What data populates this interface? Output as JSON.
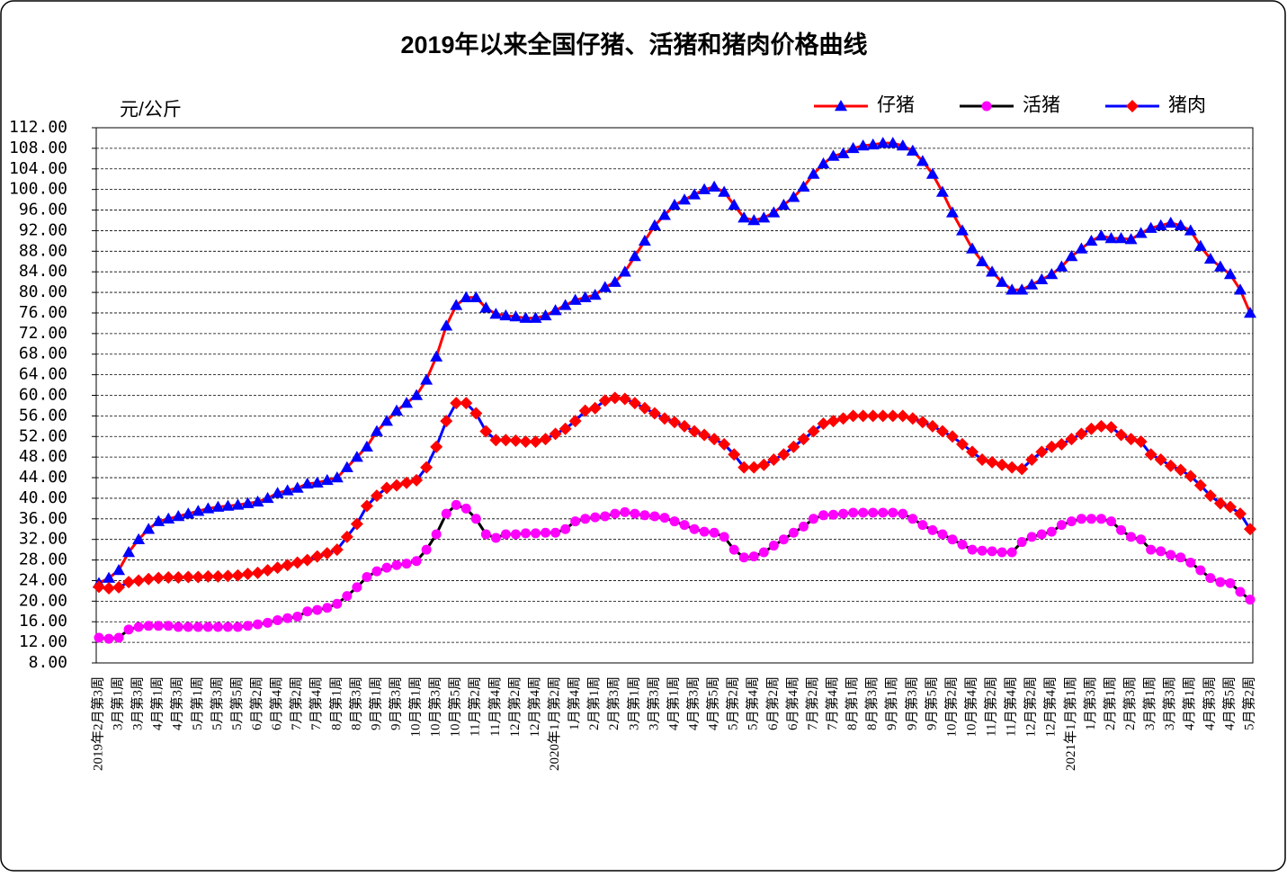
{
  "chart_data": {
    "type": "line",
    "title": "2019年以来全国仔猪、活猪和猪肉价格曲线",
    "y_label": "元/公斤",
    "categories": [
      "2019年2月第3周",
      null,
      "3月第1周",
      null,
      "3月第3周",
      null,
      "4月第1周",
      null,
      "4月第3周",
      null,
      "5月第1周",
      null,
      "5月第3周",
      null,
      "5月第5周",
      null,
      "6月第2周",
      null,
      "6月第4周",
      null,
      "7月第2周",
      null,
      "7月第4周",
      null,
      "8月第1周",
      null,
      "8月第3周",
      null,
      "9月第1周",
      null,
      "9月第3周",
      null,
      "10月第1周",
      null,
      "10月第3周",
      null,
      "10月第5周",
      null,
      "11月第2周",
      null,
      "11月第4周",
      null,
      "12月第2周",
      null,
      "12月第4周",
      null,
      "2020年1月第2周",
      null,
      "1月第4周",
      null,
      "2月第1周",
      null,
      "2月第3周",
      null,
      "3月第1周",
      null,
      "3月第3周",
      null,
      "4月第1周",
      null,
      "4月第3周",
      null,
      "4月第5周",
      null,
      "5月第2周",
      null,
      "5月第4周",
      null,
      "6月第2周",
      null,
      "6月第4周",
      null,
      "7月第2周",
      null,
      "7月第4周",
      null,
      "8月第1周",
      null,
      "8月第3周",
      null,
      "9月第1周",
      null,
      "9月第3周",
      null,
      "9月第5周",
      null,
      "10月第2周",
      null,
      "10月第4周",
      null,
      "11月第2周",
      null,
      "11月第4周",
      null,
      "12月第2周",
      null,
      "12月第4周",
      null,
      "2021年1月第1周",
      null,
      "1月第3周",
      null,
      "2月第1周",
      null,
      "2月第3周",
      null,
      "3月第1周",
      null,
      "3月第3周",
      null,
      "4月第1周",
      null,
      "4月第3周",
      null,
      "4月第5周",
      null,
      "5月第2周"
    ],
    "series": [
      {
        "name": "仔猪",
        "line_color": "#ff0000",
        "marker_color": "#0000ff",
        "marker": "triangle",
        "values": [
          23.5,
          24.5,
          26,
          29.5,
          32,
          34,
          35.5,
          36,
          36.5,
          37,
          37.5,
          38,
          38.3,
          38.5,
          38.7,
          39,
          39.3,
          40,
          41,
          41.5,
          42,
          42.8,
          43,
          43.5,
          44,
          46,
          48,
          50,
          53,
          55,
          57,
          58.5,
          60,
          63,
          67.5,
          73.5,
          77.5,
          79,
          79,
          77,
          75.8,
          75.5,
          75.3,
          75,
          75,
          75.5,
          76.5,
          77.5,
          78.5,
          79,
          79.5,
          81,
          82,
          84,
          87,
          90,
          93,
          95,
          97,
          98,
          99,
          100,
          100.5,
          99.5,
          97,
          94.5,
          94,
          94.5,
          95.5,
          97,
          98.5,
          100.5,
          103,
          105,
          106.5,
          107,
          108,
          108.5,
          108.7,
          109,
          109,
          108.5,
          107.5,
          105.5,
          103,
          99.5,
          95.5,
          92,
          88.5,
          86,
          84,
          82,
          80.5,
          80.5,
          81.5,
          82.5,
          83.5,
          85,
          87,
          88.5,
          90,
          91,
          90.5,
          90.5,
          90.3,
          91.5,
          92.5,
          93,
          93.5,
          93,
          92,
          89,
          86.5,
          85,
          83.5,
          80.5,
          76
        ]
      },
      {
        "name": "活猪",
        "line_color": "#000000",
        "marker_color": "#ff00ff",
        "marker": "circle",
        "values": [
          12.9,
          12.7,
          12.9,
          14.5,
          15,
          15.2,
          15.2,
          15.2,
          15,
          15,
          15,
          15,
          15,
          15,
          15,
          15.2,
          15.5,
          15.8,
          16.3,
          16.7,
          17,
          18,
          18.3,
          18.7,
          19.5,
          21,
          22.7,
          24.7,
          25.8,
          26.5,
          27,
          27.3,
          27.8,
          30,
          33,
          37,
          38.7,
          38,
          36,
          33,
          32.3,
          33,
          33,
          33.2,
          33.2,
          33.3,
          33.3,
          34,
          35.5,
          36,
          36.3,
          36.5,
          37,
          37.3,
          37,
          36.7,
          36.5,
          36.2,
          35.5,
          34.8,
          34,
          33.5,
          33.3,
          32.5,
          30,
          28.5,
          28.7,
          29.5,
          30.8,
          32,
          33.3,
          34.5,
          36,
          36.7,
          36.8,
          37,
          37.2,
          37.2,
          37.2,
          37.2,
          37.2,
          37,
          36,
          34.8,
          33.8,
          33,
          32,
          31,
          30,
          29.8,
          29.7,
          29.5,
          29.5,
          31.5,
          32.5,
          33,
          33.5,
          34.8,
          35.5,
          36,
          36,
          36,
          35.5,
          33.8,
          32.5,
          32,
          30,
          29.7,
          29,
          28.5,
          27.5,
          26,
          24.5,
          23.7,
          23.5,
          21.8,
          20.3
        ]
      },
      {
        "name": "猪肉",
        "line_color": "#0000ff",
        "marker_color": "#ff0000",
        "marker": "diamond",
        "values": [
          22.8,
          22.5,
          22.7,
          23.7,
          24,
          24.3,
          24.5,
          24.6,
          24.6,
          24.7,
          24.7,
          24.8,
          24.8,
          24.9,
          25,
          25.3,
          25.5,
          26,
          26.5,
          27,
          27.5,
          28,
          28.7,
          29.3,
          30,
          32.5,
          35,
          38.5,
          40.5,
          42,
          42.5,
          43,
          43.5,
          46,
          50,
          55,
          58.5,
          58.5,
          56.5,
          53,
          51.3,
          51.3,
          51.2,
          51,
          51,
          51.5,
          52.5,
          53.5,
          55,
          57,
          57.5,
          59,
          59.5,
          59.3,
          58.5,
          57.5,
          56.5,
          55.5,
          54.8,
          54,
          53,
          52.3,
          51.5,
          50.5,
          48.5,
          46,
          46,
          46.5,
          47.5,
          48.5,
          50,
          51.5,
          53,
          54.5,
          55,
          55.5,
          56,
          56,
          56,
          56,
          56,
          56,
          55.5,
          54.8,
          54,
          53,
          52,
          50.5,
          49,
          47.5,
          47,
          46.5,
          46,
          45.7,
          47.5,
          49,
          50,
          50.5,
          51.5,
          52.5,
          53.5,
          54,
          53.8,
          52.3,
          51.5,
          51,
          48.5,
          47.5,
          46.3,
          45.5,
          44.3,
          42.5,
          40.5,
          39,
          38.3,
          37,
          34
        ]
      }
    ],
    "ylim": [
      8,
      112
    ],
    "yticks": [
      {
        "value": 8,
        "label": "8.00"
      },
      {
        "value": 12,
        "label": "12.00"
      },
      {
        "value": 16,
        "label": "16.00"
      },
      {
        "value": 20,
        "label": "20.00"
      },
      {
        "value": 24,
        "label": "24.00"
      },
      {
        "value": 28,
        "label": "28.00"
      },
      {
        "value": 32,
        "label": "32.00"
      },
      {
        "value": 36,
        "label": "36.00"
      },
      {
        "value": 40,
        "label": "40.00"
      },
      {
        "value": 44,
        "label": "44.00"
      },
      {
        "value": 48,
        "label": "48.00"
      },
      {
        "value": 52,
        "label": "52.00"
      },
      {
        "value": 56,
        "label": "56.00"
      },
      {
        "value": 60,
        "label": "60.00"
      },
      {
        "value": 64,
        "label": "64.00"
      },
      {
        "value": 68,
        "label": "68.00"
      },
      {
        "value": 72,
        "label": "72.00"
      },
      {
        "value": 76,
        "label": "76.00"
      },
      {
        "value": 80,
        "label": "80.00"
      },
      {
        "value": 84,
        "label": "84.00"
      },
      {
        "value": 88,
        "label": "88.00"
      },
      {
        "value": 92,
        "label": "92.00"
      },
      {
        "value": 96,
        "label": "96.00"
      },
      {
        "value": 100,
        "label": "100.00"
      },
      {
        "value": 104,
        "label": "104.00"
      },
      {
        "value": 108,
        "label": "108.00"
      },
      {
        "value": 112,
        "label": "112.00"
      }
    ],
    "grid": true,
    "legend": "top-right"
  }
}
